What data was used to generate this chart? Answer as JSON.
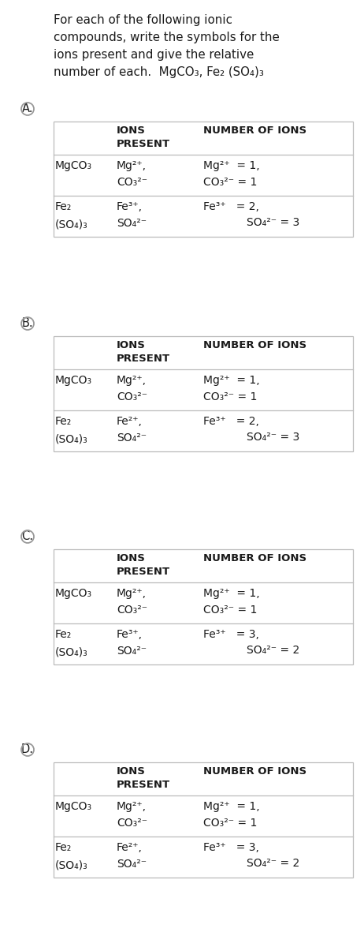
{
  "bg_color": "#ffffff",
  "text_color": "#1a1a1a",
  "title_lines": [
    "For each of the following ionic",
    "compounds, write the symbols for the",
    "ions present and give the relative",
    "number of each.  MgCO₃, Fe₂ (SO₄)₃"
  ],
  "sections": [
    {
      "label": "A.",
      "fe_ion": "Fe³⁺",
      "fe_number": "Fe³⁺   = 2,",
      "so4_number": "SO₄²⁻ = 3"
    },
    {
      "label": "B.",
      "fe_ion": "Fe²⁺",
      "fe_number": "Fe³⁺   = 2,",
      "so4_number": "SO₄²⁻ = 3"
    },
    {
      "label": "C.",
      "fe_ion": "Fe³⁺",
      "fe_number": "Fe³⁺   = 3,",
      "so4_number": "SO₄²⁻ = 2"
    },
    {
      "label": "D.",
      "fe_ion": "Fe²⁺",
      "fe_number": "Fe³⁺   = 3,",
      "so4_number": "SO₄²⁻ = 2"
    }
  ],
  "table_border_color": "#bbbbbb",
  "circle_color": "#999999",
  "font_size_title": 10.8,
  "font_size_body": 10.0,
  "font_size_header": 9.5
}
